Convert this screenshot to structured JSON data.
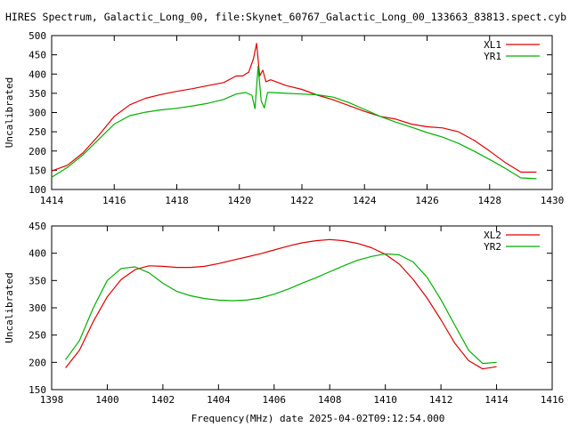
{
  "title": "HIRES Spectrum, Galactic_Long_00, file:Skynet_60767_Galactic_Long_00_133663_83813.spect.cyb",
  "colors": {
    "red": "#e00000",
    "green": "#00b000",
    "axes": "#000000"
  },
  "chart_data": [
    {
      "type": "line",
      "xlabel": "",
      "ylabel": "Uncalibrated",
      "xlim": [
        1414,
        1430
      ],
      "ylim": [
        100,
        500
      ],
      "xticks": [
        1414,
        1416,
        1418,
        1420,
        1422,
        1424,
        1426,
        1428,
        1430
      ],
      "yticks": [
        100,
        150,
        200,
        250,
        300,
        350,
        400,
        450,
        500
      ],
      "grid": false,
      "legend": "top-right",
      "series": [
        {
          "name": "XL1",
          "color": "#e00000",
          "x": [
            1414.0,
            1414.5,
            1415.0,
            1415.5,
            1416.0,
            1416.5,
            1417.0,
            1417.5,
            1418.0,
            1418.5,
            1419.0,
            1419.5,
            1419.9,
            1420.1,
            1420.3,
            1420.45,
            1420.55,
            1420.65,
            1420.75,
            1420.85,
            1421.0,
            1421.5,
            1422.0,
            1422.5,
            1423.0,
            1423.5,
            1424.0,
            1424.5,
            1425.0,
            1425.5,
            1426.0,
            1426.5,
            1427.0,
            1427.5,
            1428.0,
            1428.5,
            1429.0,
            1429.5
          ],
          "values": [
            148,
            163,
            195,
            240,
            290,
            320,
            337,
            347,
            355,
            362,
            370,
            378,
            395,
            395,
            405,
            440,
            480,
            395,
            410,
            380,
            385,
            370,
            360,
            345,
            333,
            318,
            303,
            290,
            283,
            270,
            263,
            260,
            250,
            228,
            200,
            170,
            145,
            145
          ]
        },
        {
          "name": "YR1",
          "color": "#00b000",
          "x": [
            1414.0,
            1414.5,
            1415.0,
            1415.5,
            1416.0,
            1416.5,
            1417.0,
            1417.5,
            1418.0,
            1418.5,
            1419.0,
            1419.5,
            1419.9,
            1420.2,
            1420.4,
            1420.5,
            1420.6,
            1420.7,
            1420.8,
            1420.9,
            1421.0,
            1421.5,
            1422.0,
            1422.5,
            1423.0,
            1423.5,
            1424.0,
            1424.5,
            1425.0,
            1425.5,
            1426.0,
            1426.5,
            1427.0,
            1427.5,
            1428.0,
            1428.5,
            1429.0,
            1429.5
          ],
          "values": [
            132,
            157,
            190,
            230,
            270,
            292,
            301,
            307,
            311,
            317,
            324,
            334,
            348,
            352,
            345,
            310,
            420,
            330,
            312,
            352,
            352,
            350,
            348,
            346,
            340,
            326,
            308,
            290,
            275,
            262,
            248,
            236,
            220,
            200,
            178,
            155,
            130,
            128
          ]
        }
      ]
    },
    {
      "type": "line",
      "xlabel": "Frequency(MHz) date 2025-04-02T09:12:54.000",
      "ylabel": "Uncalibrated",
      "xlim": [
        1398,
        1416
      ],
      "ylim": [
        150,
        450
      ],
      "xticks": [
        1398,
        1400,
        1402,
        1404,
        1406,
        1408,
        1410,
        1412,
        1414,
        1416
      ],
      "yticks": [
        150,
        200,
        250,
        300,
        350,
        400,
        450
      ],
      "grid": false,
      "legend": "top-right",
      "series": [
        {
          "name": "XL2",
          "color": "#e00000",
          "x": [
            1398.5,
            1399.0,
            1399.5,
            1400.0,
            1400.5,
            1401.0,
            1401.5,
            1402.0,
            1402.5,
            1403.0,
            1403.5,
            1404.0,
            1404.5,
            1405.0,
            1405.5,
            1406.0,
            1406.5,
            1407.0,
            1407.5,
            1408.0,
            1408.5,
            1409.0,
            1409.5,
            1410.0,
            1410.5,
            1411.0,
            1411.5,
            1412.0,
            1412.5,
            1413.0,
            1413.5,
            1414.0
          ],
          "values": [
            190,
            222,
            275,
            320,
            352,
            370,
            377,
            376,
            374,
            374,
            376,
            381,
            387,
            393,
            399,
            406,
            413,
            419,
            423,
            425,
            423,
            418,
            410,
            398,
            380,
            352,
            318,
            278,
            235,
            203,
            188,
            192
          ]
        },
        {
          "name": "YR2",
          "color": "#00b000",
          "x": [
            1398.5,
            1399.0,
            1399.5,
            1400.0,
            1400.5,
            1401.0,
            1401.5,
            1402.0,
            1402.5,
            1403.0,
            1403.5,
            1404.0,
            1404.5,
            1405.0,
            1405.5,
            1406.0,
            1406.5,
            1407.0,
            1407.5,
            1408.0,
            1408.5,
            1409.0,
            1409.5,
            1410.0,
            1410.5,
            1411.0,
            1411.5,
            1412.0,
            1412.5,
            1413.0,
            1413.5,
            1414.0
          ],
          "values": [
            205,
            240,
            300,
            350,
            372,
            375,
            364,
            345,
            330,
            322,
            317,
            314,
            313,
            314,
            318,
            325,
            334,
            345,
            355,
            366,
            377,
            387,
            394,
            399,
            397,
            384,
            356,
            315,
            268,
            222,
            198,
            200
          ]
        }
      ]
    }
  ]
}
